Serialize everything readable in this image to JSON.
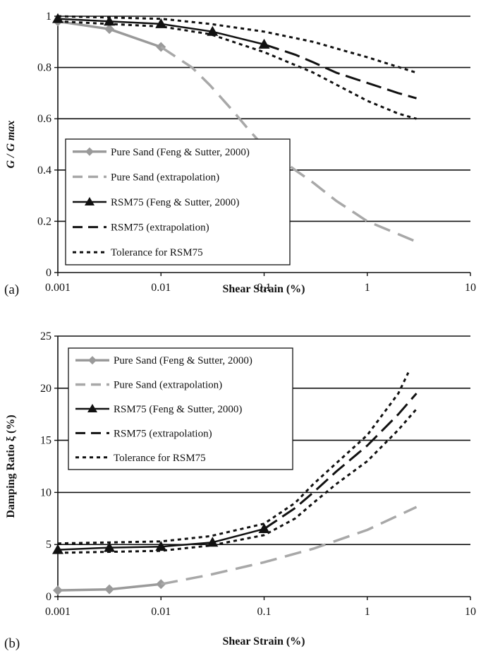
{
  "chart_data": [
    {
      "panel_label": "(a)",
      "type": "line",
      "xlabel": "Shear Strain (%)",
      "ylabel": "G / G max",
      "x_scale": "log",
      "xlim": [
        0.001,
        10
      ],
      "ylim": [
        0,
        1
      ],
      "x_ticks": [
        "0.001",
        "0.01",
        "0.1",
        "1",
        "10"
      ],
      "y_ticks": [
        "0",
        "0.2",
        "0.4",
        "0.6",
        "0.8",
        "1"
      ],
      "y_tick_values": [
        0,
        0.2,
        0.4,
        0.6,
        0.8,
        1
      ],
      "grid": "horizontal",
      "legend_position": "lower-left",
      "series": [
        {
          "name": "Pure Sand (Feng & Sutter, 2000)",
          "style": "solid-diamond",
          "color": "#9a9a9a",
          "x": [
            0.001,
            0.00316,
            0.01
          ],
          "y": [
            0.98,
            0.95,
            0.88
          ]
        },
        {
          "name": "Pure Sand (extrapolation)",
          "style": "long-dash",
          "color": "#a8a8a8",
          "x": [
            0.01,
            0.02,
            0.03,
            0.05,
            0.07,
            0.1,
            0.2,
            0.3,
            0.5,
            1,
            2,
            3
          ],
          "y": [
            0.88,
            0.8,
            0.73,
            0.63,
            0.56,
            0.49,
            0.4,
            0.35,
            0.28,
            0.2,
            0.15,
            0.12
          ]
        },
        {
          "name": "RSM75 (Feng & Sutter, 2000)",
          "style": "solid-triangle",
          "color": "#111111",
          "x": [
            0.001,
            0.00316,
            0.01,
            0.0316,
            0.1
          ],
          "y": [
            0.99,
            0.98,
            0.97,
            0.94,
            0.89
          ]
        },
        {
          "name": "RSM75 (extrapolation)",
          "style": "dash",
          "color": "#111111",
          "x": [
            0.1,
            0.2,
            0.3,
            0.5,
            1,
            2,
            3
          ],
          "y": [
            0.89,
            0.85,
            0.82,
            0.78,
            0.74,
            0.7,
            0.68
          ]
        },
        {
          "name": "Tolerance for RSM75",
          "style": "dot",
          "color": "#111111",
          "x": [
            0.001,
            0.01,
            0.03,
            0.1,
            0.3,
            1,
            3
          ],
          "y": [
            1.0,
            0.99,
            0.97,
            0.94,
            0.9,
            0.84,
            0.78
          ]
        },
        {
          "name": "Tolerance for RSM75",
          "style": "dot",
          "color": "#111111",
          "x": [
            0.001,
            0.01,
            0.03,
            0.1,
            0.3,
            1,
            2,
            3
          ],
          "y": [
            0.98,
            0.96,
            0.93,
            0.86,
            0.78,
            0.67,
            0.62,
            0.6
          ]
        }
      ]
    },
    {
      "panel_label": "(b)",
      "type": "line",
      "xlabel": "Shear Strain (%)",
      "ylabel": "Damping Ratio ξ (%)",
      "x_scale": "log",
      "xlim": [
        0.001,
        10
      ],
      "ylim": [
        0,
        25
      ],
      "x_ticks": [
        "0.001",
        "0.01",
        "0.1",
        "1",
        "10"
      ],
      "y_ticks": [
        "0",
        "5",
        "10",
        "15",
        "20",
        "25"
      ],
      "y_tick_values": [
        0,
        5,
        10,
        15,
        20,
        25
      ],
      "grid": "horizontal",
      "legend_position": "top-left",
      "series": [
        {
          "name": "Pure Sand (Feng & Sutter, 2000)",
          "style": "solid-diamond",
          "color": "#9a9a9a",
          "x": [
            0.001,
            0.00316,
            0.01
          ],
          "y": [
            0.6,
            0.7,
            1.2
          ]
        },
        {
          "name": "Pure Sand (extrapolation)",
          "style": "long-dash",
          "color": "#a8a8a8",
          "x": [
            0.01,
            0.03,
            0.1,
            0.3,
            1,
            3
          ],
          "y": [
            1.2,
            2.1,
            3.3,
            4.6,
            6.4,
            8.6
          ]
        },
        {
          "name": "RSM75 (Feng & Sutter, 2000)",
          "style": "solid-triangle",
          "color": "#111111",
          "x": [
            0.001,
            0.00316,
            0.01,
            0.0316,
            0.1
          ],
          "y": [
            4.5,
            4.7,
            4.8,
            5.2,
            6.5
          ]
        },
        {
          "name": "RSM75 (extrapolation)",
          "style": "dash",
          "color": "#111111",
          "x": [
            0.1,
            0.2,
            0.3,
            0.5,
            1,
            2,
            3
          ],
          "y": [
            6.5,
            8.5,
            10.0,
            12.0,
            14.5,
            17.5,
            19.5
          ]
        },
        {
          "name": "Tolerance for RSM75",
          "style": "dot",
          "color": "#111111",
          "x": [
            0.001,
            0.01,
            0.03,
            0.1,
            0.2,
            0.3,
            0.5,
            1,
            2,
            2.5
          ],
          "y": [
            5.1,
            5.3,
            5.8,
            7.0,
            9.0,
            10.8,
            12.8,
            15.5,
            19.5,
            21.5
          ]
        },
        {
          "name": "Tolerance for RSM75",
          "style": "dot",
          "color": "#111111",
          "x": [
            0.001,
            0.01,
            0.03,
            0.1,
            0.2,
            0.3,
            0.5,
            1,
            2,
            3
          ],
          "y": [
            4.2,
            4.4,
            4.9,
            5.9,
            7.5,
            9.0,
            10.8,
            13.0,
            16.0,
            18.0
          ]
        }
      ]
    }
  ]
}
